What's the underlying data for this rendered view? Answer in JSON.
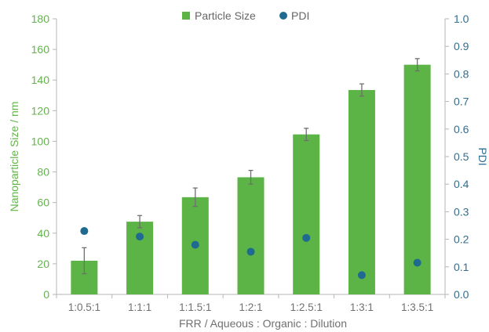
{
  "chart_data": {
    "type": "bar",
    "title": "",
    "xlabel": "FRR / Aqueous : Organic : Dilution",
    "ylabel": "Nanoparticle Size / nm",
    "y2label": "PDI",
    "categories": [
      "1:0.5:1",
      "1:1:1",
      "1:1.5:1",
      "1:2:1",
      "1:2.5:1",
      "1:3:1",
      "1:3.5:1"
    ],
    "ylim": [
      0,
      180
    ],
    "y2lim": [
      0,
      1.0
    ],
    "yticks": [
      "0",
      "20",
      "40",
      "60",
      "80",
      "100",
      "120",
      "140",
      "160",
      "180"
    ],
    "y2ticks": [
      "0.0",
      "0.1",
      "0.2",
      "0.3",
      "0.4",
      "0.5",
      "0.6",
      "0.7",
      "0.8",
      "0.9",
      "1.0"
    ],
    "legend_position": "top-center",
    "grid": false,
    "series": [
      {
        "name": "Particle Size",
        "kind": "bar",
        "axis": "left",
        "color": "#5cb346",
        "values": [
          22,
          47.5,
          63.5,
          76.5,
          104.5,
          133.5,
          150
        ],
        "error": [
          8.5,
          4,
          6,
          4.5,
          4,
          4,
          4
        ]
      },
      {
        "name": "PDI",
        "kind": "scatter",
        "axis": "right",
        "color": "#1f6a91",
        "values": [
          0.23,
          0.21,
          0.18,
          0.155,
          0.205,
          0.07,
          0.115
        ]
      }
    ]
  }
}
